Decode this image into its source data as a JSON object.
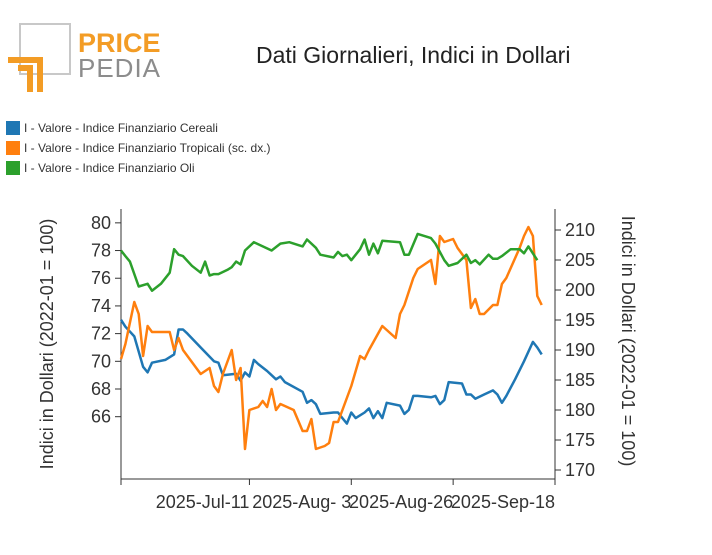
{
  "brand": {
    "name_top": "PRICE",
    "name_bottom": "PEDIA",
    "accent": "#f39c25",
    "grey": "#8c8c8c"
  },
  "colors": {
    "cereali": "#1f77b4",
    "tropicali": "#ff7f0e",
    "oli": "#2ca02c"
  },
  "chart_data": {
    "type": "line",
    "title": "Dati Giornalieri, Indici in Dollari",
    "ylabel": "Indici in Dollari (2022-01 = 100)",
    "y2label": "Indici in Dollari (2022-01 = 100)",
    "ylim": [
      61.5,
      81
    ],
    "y2lim": [
      168.5,
      213.5
    ],
    "yticks": [
      66,
      68,
      70,
      72,
      74,
      76,
      78,
      80
    ],
    "y2ticks": [
      170,
      175,
      180,
      185,
      190,
      195,
      200,
      205,
      210
    ],
    "xlim": [
      "2025-06-12",
      "2025-09-18"
    ],
    "xticks": [
      "2025-Jul-11",
      "2025-Aug- 3",
      "2025-Aug-26",
      "2025-Sep-18"
    ],
    "grid": false,
    "legend_position": "top-left",
    "series": [
      {
        "name": "I - Valore - Indice Finanziario Cereali",
        "axis": "left",
        "color": "#1f77b4",
        "points": [
          [
            "2025-06-12",
            73.0
          ],
          [
            "2025-06-13",
            72.5
          ],
          [
            "2025-06-15",
            71.8
          ],
          [
            "2025-06-17",
            69.6
          ],
          [
            "2025-06-18",
            69.2
          ],
          [
            "2025-06-19",
            69.9
          ],
          [
            "2025-06-22",
            70.1
          ],
          [
            "2025-06-24",
            70.5
          ],
          [
            "2025-06-25",
            72.3
          ],
          [
            "2025-06-26",
            72.3
          ],
          [
            "2025-06-27",
            72.0
          ],
          [
            "2025-06-30",
            71.0
          ],
          [
            "2025-07-03",
            70.0
          ],
          [
            "2025-07-04",
            69.9
          ],
          [
            "2025-07-05",
            69.0
          ],
          [
            "2025-07-08",
            69.1
          ],
          [
            "2025-07-09",
            68.6
          ],
          [
            "2025-07-10",
            69.2
          ],
          [
            "2025-07-11",
            68.9
          ],
          [
            "2025-07-12",
            70.1
          ],
          [
            "2025-07-13",
            69.8
          ],
          [
            "2025-07-15",
            69.3
          ],
          [
            "2025-07-16",
            69.0
          ],
          [
            "2025-07-17",
            68.7
          ],
          [
            "2025-07-18",
            68.9
          ],
          [
            "2025-07-19",
            68.5
          ],
          [
            "2025-07-23",
            67.8
          ],
          [
            "2025-07-24",
            67.0
          ],
          [
            "2025-07-25",
            67.2
          ],
          [
            "2025-07-26",
            66.9
          ],
          [
            "2025-07-27",
            66.2
          ],
          [
            "2025-07-30",
            66.3
          ],
          [
            "2025-07-31",
            66.3
          ],
          [
            "2025-08-01",
            65.9
          ],
          [
            "2025-08-02",
            65.5
          ],
          [
            "2025-08-03",
            66.3
          ],
          [
            "2025-08-04",
            65.9
          ],
          [
            "2025-08-06",
            66.3
          ],
          [
            "2025-08-07",
            66.6
          ],
          [
            "2025-08-08",
            65.9
          ],
          [
            "2025-08-09",
            66.4
          ],
          [
            "2025-08-10",
            65.9
          ],
          [
            "2025-08-11",
            67.0
          ],
          [
            "2025-08-14",
            66.8
          ],
          [
            "2025-08-15",
            66.2
          ],
          [
            "2025-08-16",
            66.5
          ],
          [
            "2025-08-17",
            67.5
          ],
          [
            "2025-08-18",
            67.5
          ],
          [
            "2025-08-21",
            67.4
          ],
          [
            "2025-08-22",
            67.5
          ],
          [
            "2025-08-23",
            66.9
          ],
          [
            "2025-08-24",
            67.2
          ],
          [
            "2025-08-25",
            68.5
          ],
          [
            "2025-08-28",
            68.4
          ],
          [
            "2025-08-29",
            67.6
          ],
          [
            "2025-08-30",
            67.6
          ],
          [
            "2025-08-31",
            67.3
          ],
          [
            "2025-09-02",
            67.6
          ],
          [
            "2025-09-04",
            67.9
          ],
          [
            "2025-09-05",
            67.6
          ],
          [
            "2025-09-06",
            67.0
          ],
          [
            "2025-09-07",
            67.5
          ],
          [
            "2025-09-09",
            68.7
          ],
          [
            "2025-09-11",
            70.0
          ],
          [
            "2025-09-13",
            71.4
          ],
          [
            "2025-09-14",
            71.0
          ],
          [
            "2025-09-15",
            70.5
          ]
        ]
      },
      {
        "name": "I - Valore - Indice Finanziario Tropicali (sc. dx.)",
        "axis": "right",
        "color": "#ff7f0e",
        "points": [
          [
            "2025-06-12",
            188.5
          ],
          [
            "2025-06-13",
            191.0
          ],
          [
            "2025-06-15",
            198.0
          ],
          [
            "2025-06-16",
            196.0
          ],
          [
            "2025-06-17",
            189.0
          ],
          [
            "2025-06-18",
            194.0
          ],
          [
            "2025-06-19",
            193.0
          ],
          [
            "2025-06-23",
            193.0
          ],
          [
            "2025-06-24",
            190.0
          ],
          [
            "2025-06-25",
            192.0
          ],
          [
            "2025-06-26",
            190.0
          ],
          [
            "2025-06-30",
            186.0
          ],
          [
            "2025-07-02",
            187.0
          ],
          [
            "2025-07-03",
            184.0
          ],
          [
            "2025-07-04",
            183.0
          ],
          [
            "2025-07-05",
            186.0
          ],
          [
            "2025-07-07",
            190.0
          ],
          [
            "2025-07-08",
            185.0
          ],
          [
            "2025-07-09",
            187.0
          ],
          [
            "2025-07-10",
            173.5
          ],
          [
            "2025-07-11",
            180.0
          ],
          [
            "2025-07-13",
            180.5
          ],
          [
            "2025-07-14",
            181.5
          ],
          [
            "2025-07-15",
            180.5
          ],
          [
            "2025-07-16",
            183.5
          ],
          [
            "2025-07-17",
            180.0
          ],
          [
            "2025-07-18",
            181.0
          ],
          [
            "2025-07-21",
            180.0
          ],
          [
            "2025-07-23",
            176.5
          ],
          [
            "2025-07-24",
            176.5
          ],
          [
            "2025-07-25",
            178.5
          ],
          [
            "2025-07-26",
            173.5
          ],
          [
            "2025-07-28",
            174.0
          ],
          [
            "2025-07-29",
            174.5
          ],
          [
            "2025-07-30",
            178.0
          ],
          [
            "2025-07-31",
            178.0
          ],
          [
            "2025-08-03",
            184.0
          ],
          [
            "2025-08-05",
            189.0
          ],
          [
            "2025-08-06",
            188.5
          ],
          [
            "2025-08-07",
            190.0
          ],
          [
            "2025-08-10",
            194.0
          ],
          [
            "2025-08-13",
            192.0
          ],
          [
            "2025-08-14",
            196.0
          ],
          [
            "2025-08-15",
            197.5
          ],
          [
            "2025-08-17",
            202.0
          ],
          [
            "2025-08-18",
            203.5
          ],
          [
            "2025-08-21",
            205.0
          ],
          [
            "2025-08-22",
            201.0
          ],
          [
            "2025-08-23",
            209.0
          ],
          [
            "2025-08-24",
            208.0
          ],
          [
            "2025-08-26",
            208.5
          ],
          [
            "2025-08-27",
            207.0
          ],
          [
            "2025-08-29",
            205.0
          ],
          [
            "2025-08-30",
            197.0
          ],
          [
            "2025-08-31",
            198.5
          ],
          [
            "2025-09-01",
            196.0
          ],
          [
            "2025-09-02",
            196.0
          ],
          [
            "2025-09-04",
            197.5
          ],
          [
            "2025-09-05",
            197.5
          ],
          [
            "2025-09-06",
            201.0
          ],
          [
            "2025-09-07",
            202.0
          ],
          [
            "2025-09-10",
            207.0
          ],
          [
            "2025-09-11",
            209.0
          ],
          [
            "2025-09-12",
            210.5
          ],
          [
            "2025-09-13",
            209.0
          ],
          [
            "2025-09-14",
            199.0
          ],
          [
            "2025-09-15",
            197.5
          ]
        ]
      },
      {
        "name": "I - Valore - Indice Finanziario Oli",
        "axis": "left",
        "color": "#2ca02c",
        "points": [
          [
            "2025-06-12",
            78.0
          ],
          [
            "2025-06-13",
            77.6
          ],
          [
            "2025-06-14",
            77.2
          ],
          [
            "2025-06-16",
            75.4
          ],
          [
            "2025-06-18",
            75.6
          ],
          [
            "2025-06-19",
            75.1
          ],
          [
            "2025-06-21",
            75.6
          ],
          [
            "2025-06-23",
            76.4
          ],
          [
            "2025-06-24",
            78.1
          ],
          [
            "2025-06-25",
            77.7
          ],
          [
            "2025-06-26",
            77.6
          ],
          [
            "2025-06-28",
            76.9
          ],
          [
            "2025-06-30",
            76.4
          ],
          [
            "2025-07-01",
            77.2
          ],
          [
            "2025-07-02",
            76.2
          ],
          [
            "2025-07-03",
            76.3
          ],
          [
            "2025-07-04",
            76.3
          ],
          [
            "2025-07-06",
            76.6
          ],
          [
            "2025-07-07",
            76.8
          ],
          [
            "2025-07-08",
            77.2
          ],
          [
            "2025-07-09",
            77.0
          ],
          [
            "2025-07-10",
            78.0
          ],
          [
            "2025-07-12",
            78.6
          ],
          [
            "2025-07-16",
            78.0
          ],
          [
            "2025-07-18",
            78.5
          ],
          [
            "2025-07-20",
            78.6
          ],
          [
            "2025-07-23",
            78.3
          ],
          [
            "2025-07-24",
            78.8
          ],
          [
            "2025-07-26",
            78.2
          ],
          [
            "2025-07-27",
            77.7
          ],
          [
            "2025-07-30",
            77.5
          ],
          [
            "2025-07-31",
            77.9
          ],
          [
            "2025-08-01",
            77.6
          ],
          [
            "2025-08-02",
            77.7
          ],
          [
            "2025-08-03",
            77.3
          ],
          [
            "2025-08-05",
            78.1
          ],
          [
            "2025-08-06",
            78.8
          ],
          [
            "2025-08-07",
            77.7
          ],
          [
            "2025-08-08",
            78.5
          ],
          [
            "2025-08-09",
            77.8
          ],
          [
            "2025-08-10",
            78.7
          ],
          [
            "2025-08-14",
            78.6
          ],
          [
            "2025-08-15",
            77.7
          ],
          [
            "2025-08-16",
            77.7
          ],
          [
            "2025-08-18",
            79.2
          ],
          [
            "2025-08-20",
            79.0
          ],
          [
            "2025-08-21",
            78.9
          ],
          [
            "2025-08-22",
            78.5
          ],
          [
            "2025-08-24",
            77.3
          ],
          [
            "2025-08-25",
            76.9
          ],
          [
            "2025-08-27",
            77.1
          ],
          [
            "2025-08-29",
            77.7
          ],
          [
            "2025-08-30",
            77.1
          ],
          [
            "2025-08-31",
            77.3
          ],
          [
            "2025-09-01",
            77.0
          ],
          [
            "2025-09-03",
            77.7
          ],
          [
            "2025-09-04",
            77.4
          ],
          [
            "2025-09-05",
            77.4
          ],
          [
            "2025-09-06",
            77.6
          ],
          [
            "2025-09-08",
            78.1
          ],
          [
            "2025-09-10",
            78.1
          ],
          [
            "2025-09-11",
            77.8
          ],
          [
            "2025-09-12",
            78.3
          ],
          [
            "2025-09-14",
            77.3
          ]
        ]
      }
    ]
  }
}
